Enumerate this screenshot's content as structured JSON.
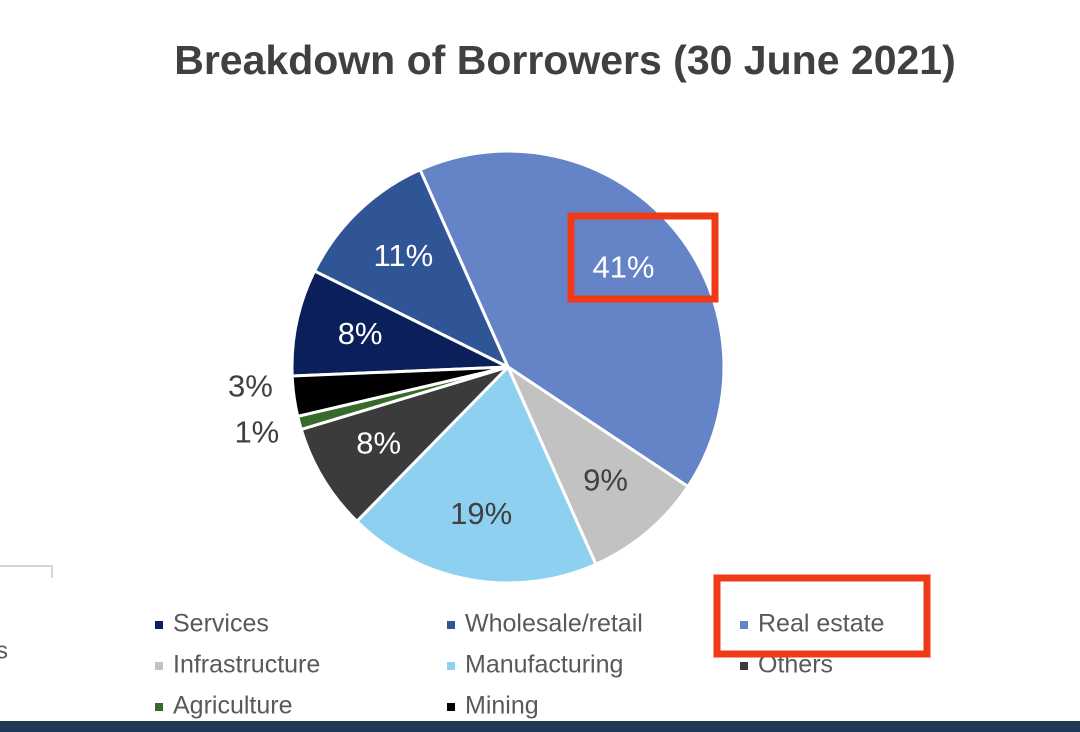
{
  "chart_data": {
    "type": "pie",
    "title": "Breakdown of Borrowers (30 June 2021)",
    "categories": [
      "Services",
      "Wholesale/retail",
      "Real estate",
      "Infrastructure",
      "Manufacturing",
      "Others",
      "Agriculture",
      "Mining"
    ],
    "values": [
      8,
      11,
      41,
      9,
      19,
      8,
      1,
      3
    ],
    "value_labels": [
      "8%",
      "11%",
      "41%",
      "9%",
      "19%",
      "8%",
      "1%",
      "3%"
    ],
    "colors": [
      "#0b1f5a",
      "#2f5597",
      "#6584c8",
      "#c2c2c2",
      "#8ed0ef",
      "#3b3b3b",
      "#386b2b",
      "#000000"
    ],
    "legend": "bottom"
  },
  "side_text": "s"
}
